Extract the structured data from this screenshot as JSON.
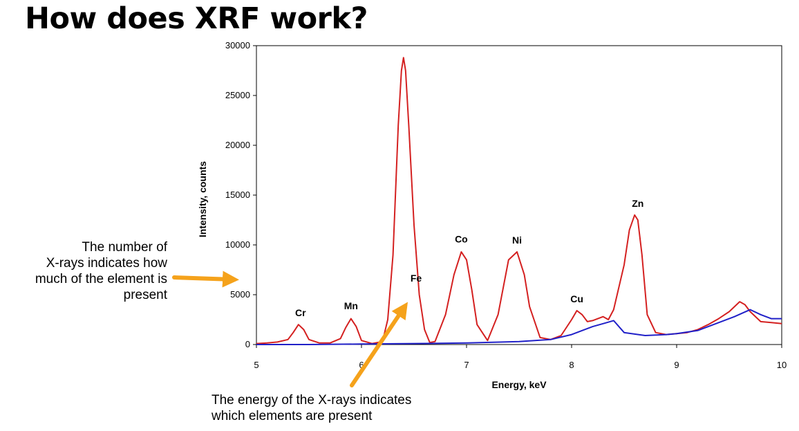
{
  "slide": {
    "title": "How does XRF work?",
    "callout_left_lines": [
      "The number of",
      "X-rays indicates how",
      "much of the element is",
      "present"
    ],
    "callout_bottom_lines": [
      "The energy of the X-rays indicates",
      "which elements are present"
    ],
    "arrow_color": "#f5a21b"
  },
  "chart_data": {
    "type": "line",
    "xlabel": "Energy, keV",
    "ylabel": "Intensity, counts",
    "xlim": [
      5,
      10
    ],
    "ylim": [
      0,
      30000
    ],
    "x_ticks": [
      5,
      6,
      7,
      8,
      9,
      10
    ],
    "y_ticks": [
      0,
      5000,
      10000,
      15000,
      20000,
      25000,
      30000
    ],
    "grid": false,
    "series": [
      {
        "color": "#d42020",
        "x": [
          5.0,
          5.1,
          5.2,
          5.3,
          5.35,
          5.4,
          5.45,
          5.5,
          5.6,
          5.7,
          5.8,
          5.85,
          5.9,
          5.95,
          6.0,
          6.1,
          6.2,
          6.25,
          6.3,
          6.35,
          6.38,
          6.4,
          6.42,
          6.45,
          6.5,
          6.55,
          6.6,
          6.65,
          6.7,
          6.8,
          6.88,
          6.95,
          7.0,
          7.05,
          7.1,
          7.2,
          7.3,
          7.4,
          7.48,
          7.55,
          7.6,
          7.7,
          7.8,
          7.9,
          8.0,
          8.05,
          8.1,
          8.15,
          8.2,
          8.3,
          8.35,
          8.4,
          8.5,
          8.55,
          8.6,
          8.63,
          8.67,
          8.72,
          8.8,
          8.9,
          9.0,
          9.1,
          9.2,
          9.3,
          9.4,
          9.5,
          9.6,
          9.65,
          9.7,
          9.8,
          9.9,
          10.0
        ],
        "y": [
          100,
          150,
          250,
          500,
          1200,
          2000,
          1500,
          500,
          150,
          150,
          600,
          1700,
          2600,
          1800,
          400,
          100,
          300,
          2500,
          9000,
          22000,
          27500,
          28800,
          27500,
          22000,
          12000,
          5000,
          1500,
          200,
          300,
          3000,
          7000,
          9300,
          8500,
          5500,
          2000,
          400,
          3000,
          8500,
          9300,
          7000,
          3800,
          700,
          500,
          900,
          2500,
          3400,
          3000,
          2300,
          2400,
          2800,
          2500,
          3500,
          8000,
          11500,
          13000,
          12500,
          9000,
          3000,
          1200,
          1000,
          1100,
          1200,
          1500,
          2000,
          2600,
          3300,
          4300,
          4000,
          3300,
          2300,
          2200,
          2100
        ]
      },
      {
        "color": "#2020c8",
        "x": [
          5.0,
          5.5,
          6.0,
          6.5,
          7.0,
          7.5,
          7.8,
          8.0,
          8.2,
          8.3,
          8.4,
          8.5,
          8.7,
          8.9,
          9.0,
          9.2,
          9.4,
          9.55,
          9.7,
          9.8,
          9.9,
          10.0
        ],
        "y": [
          0,
          0,
          50,
          100,
          150,
          300,
          500,
          1000,
          1800,
          2100,
          2400,
          1200,
          900,
          1000,
          1100,
          1400,
          2200,
          2800,
          3500,
          3000,
          2600,
          2600
        ]
      }
    ],
    "peak_labels": [
      {
        "text": "Cr",
        "x": 5.42,
        "y": 2000
      },
      {
        "text": "Mn",
        "x": 5.9,
        "y": 2700
      },
      {
        "text": "Fe",
        "x": 6.52,
        "y": 5500
      },
      {
        "text": "Co",
        "x": 6.95,
        "y": 9400
      },
      {
        "text": "Ni",
        "x": 7.48,
        "y": 9300
      },
      {
        "text": "Cu",
        "x": 8.05,
        "y": 3400
      },
      {
        "text": "Zn",
        "x": 8.63,
        "y": 13000
      }
    ]
  }
}
